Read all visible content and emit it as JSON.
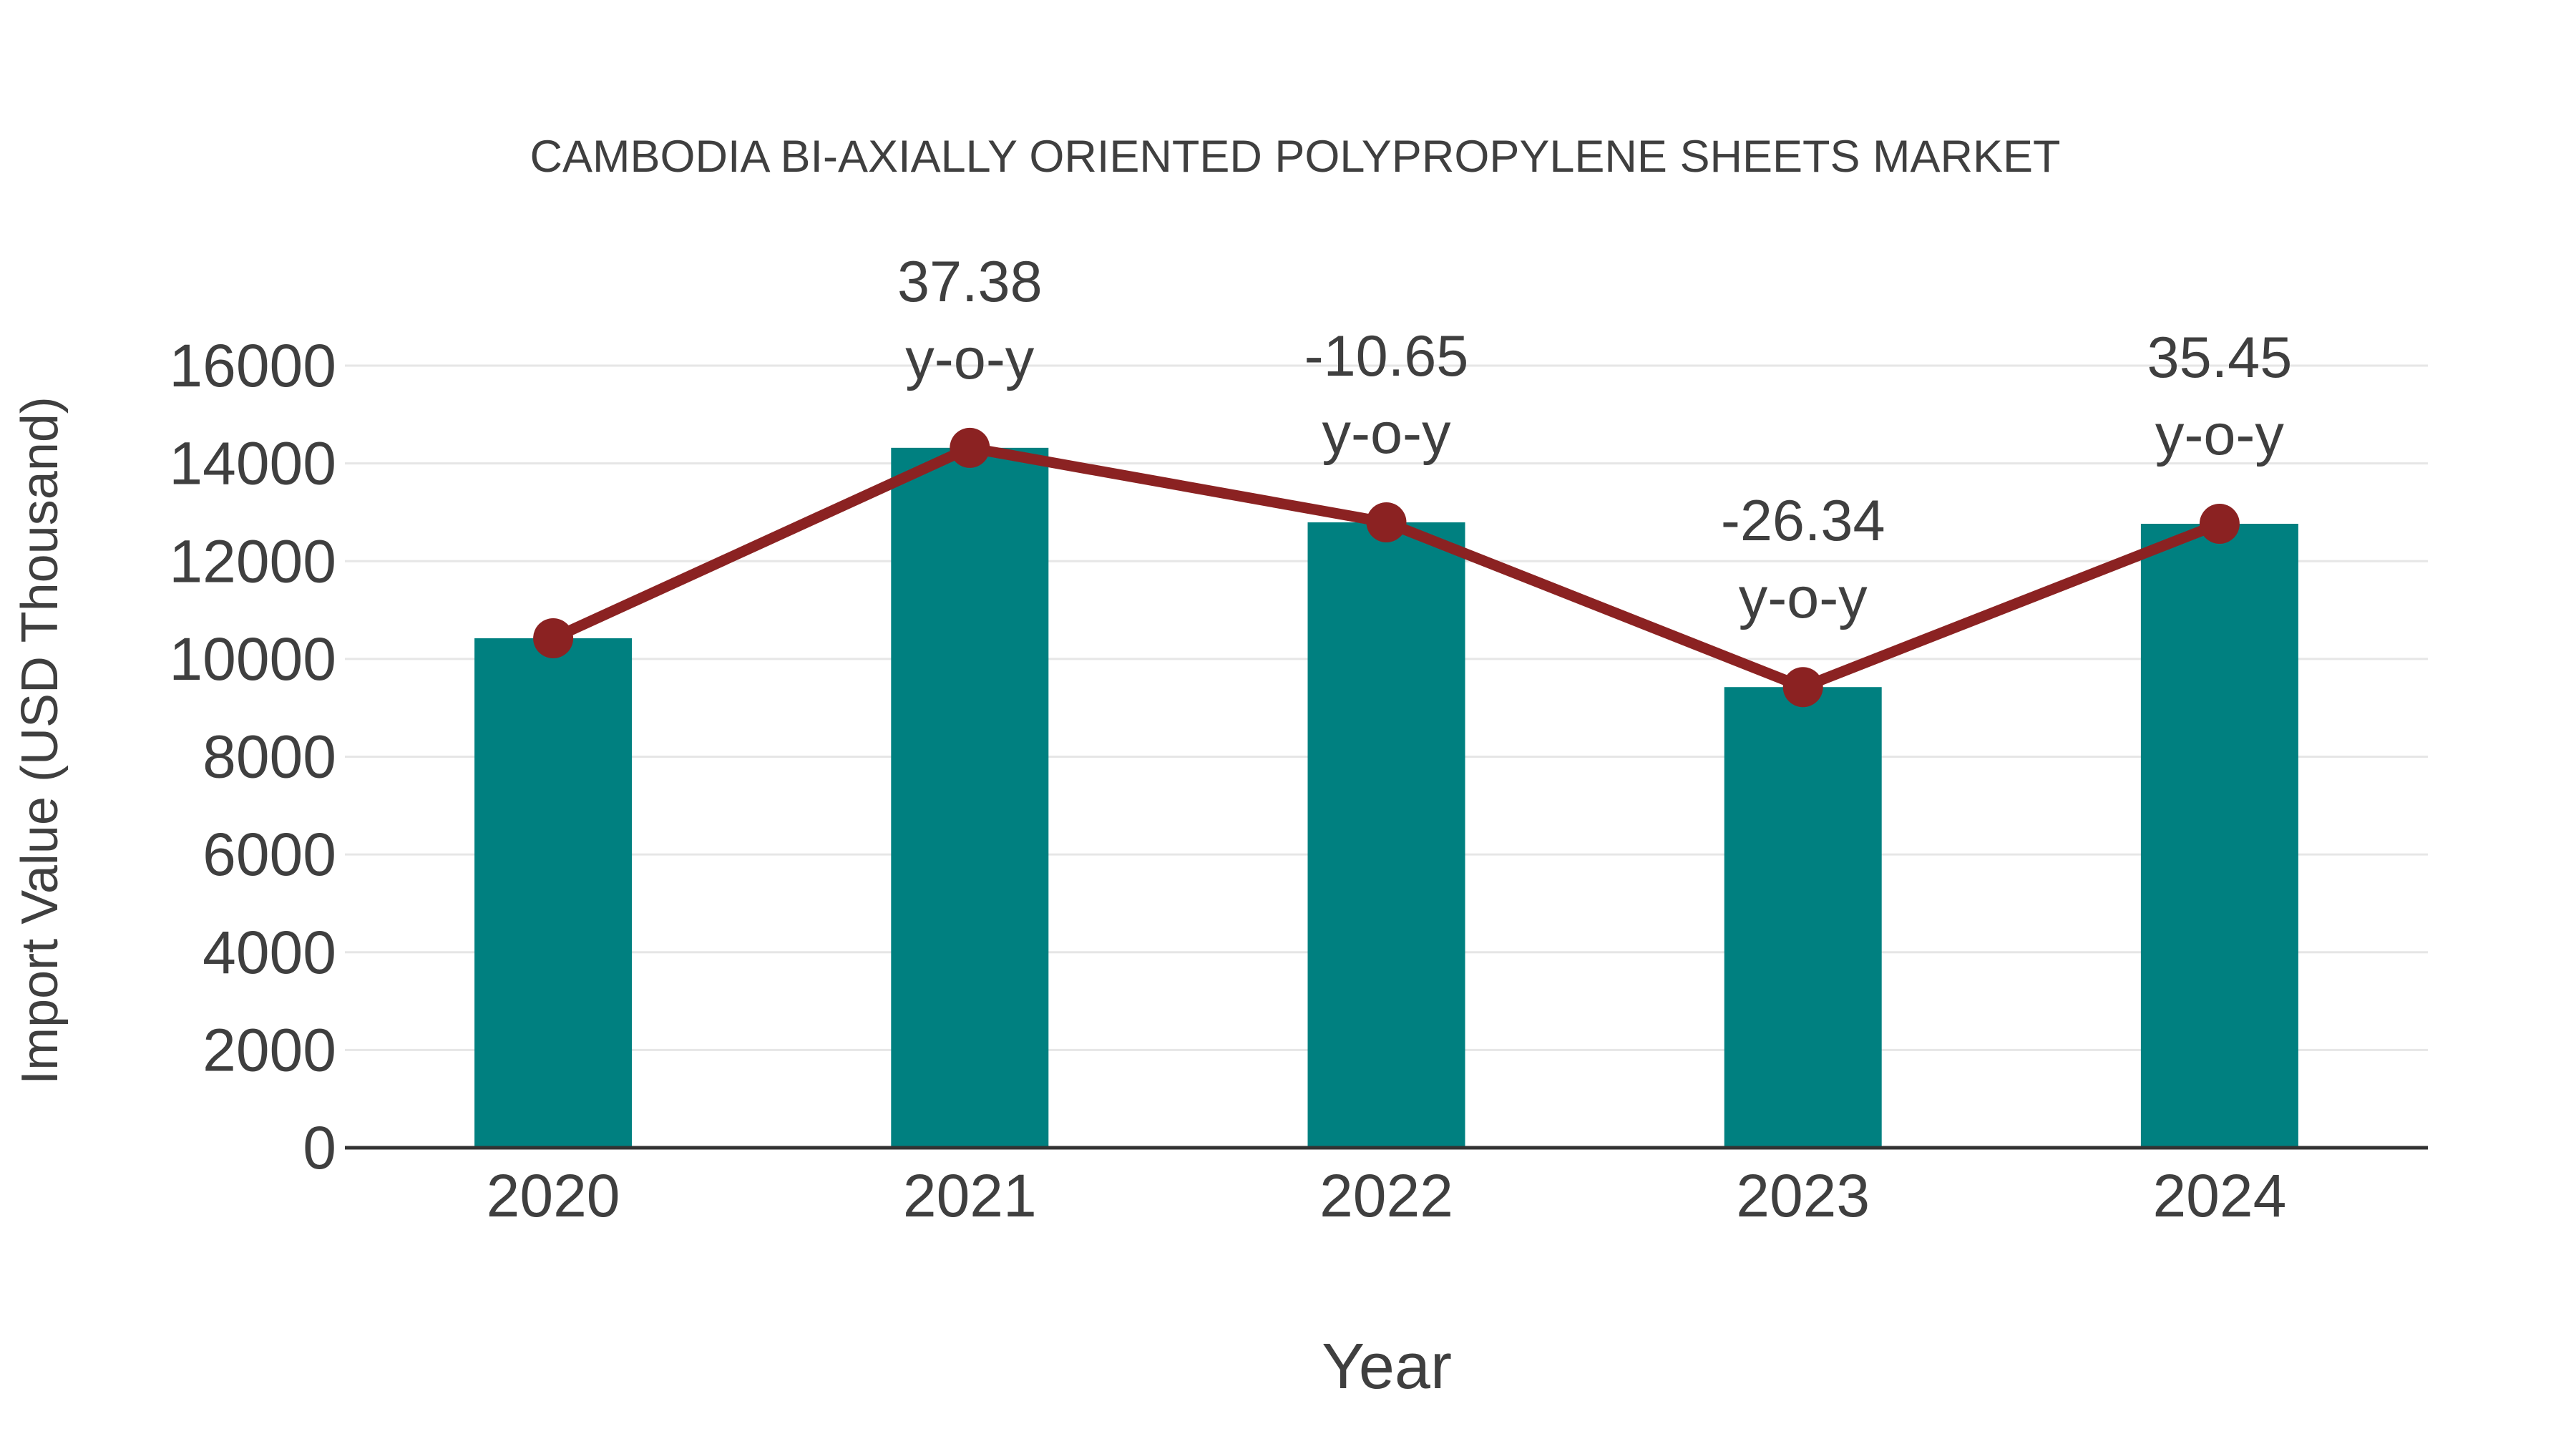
{
  "title": "CAMBODIA BI-AXIALLY ORIENTED POLYPROPYLENE SHEETS MARKET",
  "chart_data": {
    "type": "bar+line",
    "title": "CAMBODIA BI-AXIALLY ORIENTED POLYPROPYLENE SHEETS MARKET",
    "xlabel": "Year",
    "ylabel": "Import Value (USD Thousand)",
    "categories": [
      "2020",
      "2021",
      "2022",
      "2023",
      "2024"
    ],
    "series": [
      {
        "name": "Import Value (USD Thousand)",
        "type": "bar",
        "values": [
          10423,
          14319,
          12794,
          9424,
          12765
        ],
        "color": "#008080"
      },
      {
        "name": "y-o-y change",
        "type": "line",
        "values": [
          10423,
          14319,
          12794,
          9424,
          12765
        ],
        "point_labels": [
          "",
          "37.38",
          "-10.65",
          "-26.34",
          "35.45"
        ],
        "point_label_suffix": "y-o-y",
        "color": "#8b2222"
      }
    ],
    "ylim": [
      0,
      16000
    ],
    "yticks": [
      0,
      2000,
      4000,
      6000,
      8000,
      10000,
      12000,
      14000,
      16000
    ],
    "grid": "horizontal",
    "legend_position": "none"
  },
  "colors": {
    "bar": "#008080",
    "line": "#8b2222",
    "marker": "#8b2222",
    "text": "#3f3f3f",
    "gridline": "#e6e6e6",
    "axis_line": "#333333",
    "background": "#ffffff"
  }
}
